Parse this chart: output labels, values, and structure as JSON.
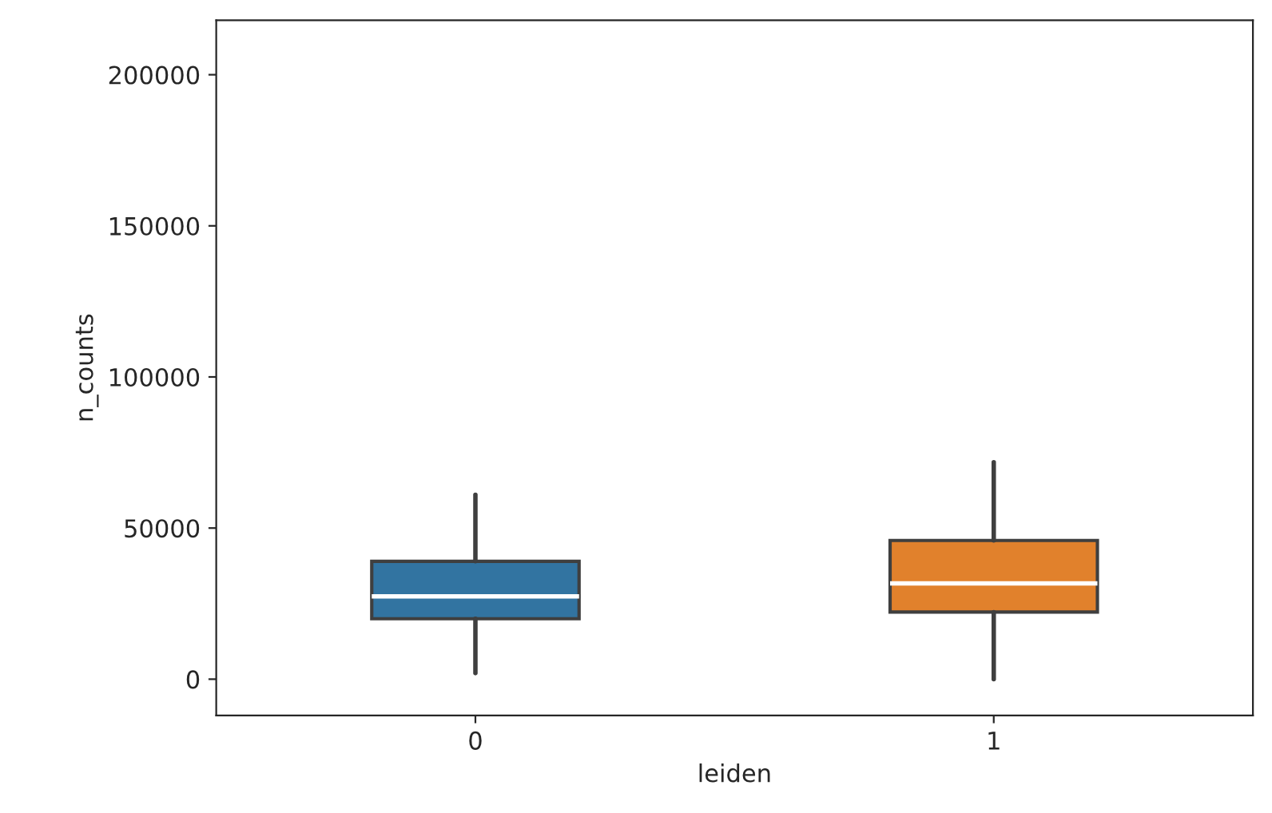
{
  "chart_data": {
    "type": "box",
    "xlabel": "leiden",
    "ylabel": "n_counts",
    "categories": [
      "0",
      "1"
    ],
    "colors": [
      "#3274a1",
      "#e1812c"
    ],
    "boxes": [
      {
        "low": 2000,
        "q1": 20000,
        "median": 27400,
        "q3": 39000,
        "high": 61000
      },
      {
        "low": 0,
        "q1": 22200,
        "median": 31700,
        "q3": 45900,
        "high": 71800
      }
    ],
    "ylim": [
      -12000,
      218000
    ],
    "yticks": [
      0,
      50000,
      100000,
      150000,
      200000
    ],
    "grid": false
  }
}
